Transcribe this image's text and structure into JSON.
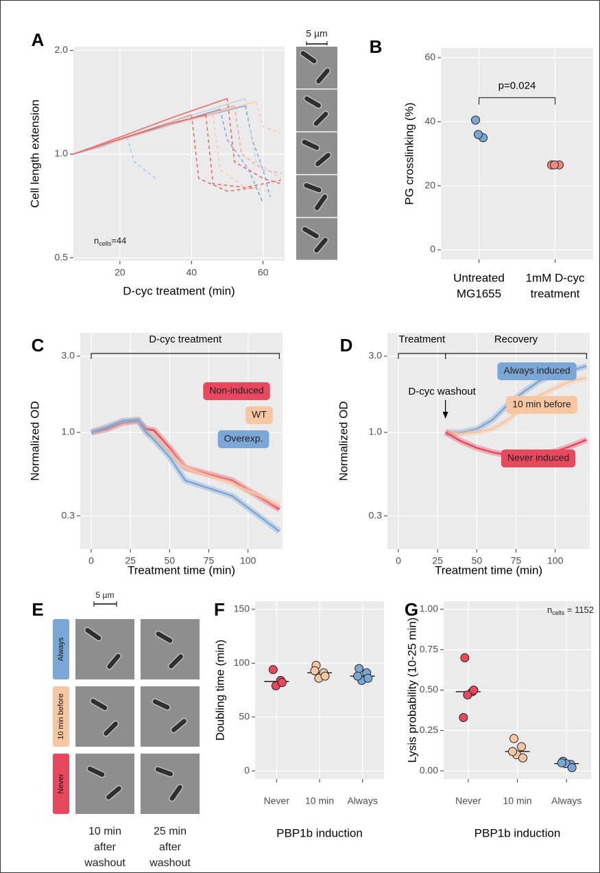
{
  "panel_a_images": {
    "scale_bar": "5 µm"
  },
  "panel_e": {
    "panel": "E",
    "scale_bar": "5 µm",
    "rows": [
      "Always",
      "10 min before",
      "Never"
    ],
    "row_colors": [
      "#7ba7d6",
      "#f7c6a3",
      "#e8475e"
    ],
    "columns": [
      [
        "10 min",
        "after",
        "washout"
      ],
      [
        "25 min",
        "after",
        "washout"
      ]
    ]
  },
  "chart_data": [
    {
      "panel": "A",
      "type": "line",
      "xlabel": "D-cyc treatment (min)",
      "ylabel": "Cell length extension",
      "xlim": [
        7,
        66
      ],
      "ylim": [
        0.49,
        2.05
      ],
      "log_y": true,
      "grid": true,
      "xticks": [
        20,
        40,
        60
      ],
      "yticks": [
        0.5,
        {
          "value": 1,
          "label": "1.0"
        },
        {
          "value": 2,
          "label": "2.0"
        }
      ],
      "annotation": {
        "main": "n",
        "sub": "cells",
        "rest": "=44"
      },
      "series": [
        {
          "color": "#ef5b5b",
          "dashed": false,
          "x": [
            7,
            20,
            35,
            50
          ],
          "values": [
            1.0,
            1.12,
            1.28,
            1.45
          ]
        },
        {
          "color": "#ef5b5b",
          "dashed": true,
          "x": [
            50,
            52,
            60,
            65
          ],
          "values": [
            1.45,
            0.95,
            0.85,
            0.82
          ]
        },
        {
          "color": "#6fa1dc",
          "dashed": false,
          "x": [
            7,
            25,
            45,
            55
          ],
          "values": [
            1.0,
            1.15,
            1.3,
            1.38
          ]
        },
        {
          "color": "#6fa1dc",
          "dashed": true,
          "x": [
            55,
            57,
            60,
            62
          ],
          "values": [
            1.38,
            1.1,
            0.9,
            0.75
          ]
        },
        {
          "color": "#f8c9a8",
          "dashed": false,
          "x": [
            7,
            20,
            38,
            46
          ],
          "values": [
            1.0,
            1.1,
            1.25,
            1.3
          ]
        },
        {
          "color": "#f8c9a8",
          "dashed": true,
          "x": [
            46,
            48,
            55,
            62
          ],
          "values": [
            1.3,
            0.9,
            0.8,
            0.78
          ]
        },
        {
          "color": "#a8c6e9",
          "dashed": false,
          "x": [
            7,
            15,
            22
          ],
          "values": [
            1.0,
            1.05,
            1.12
          ]
        },
        {
          "color": "#a8c6e9",
          "dashed": true,
          "x": [
            22,
            24,
            30
          ],
          "values": [
            1.12,
            0.95,
            0.85
          ]
        },
        {
          "color": "#ef5b5b",
          "dashed": false,
          "x": [
            7,
            25,
            40
          ],
          "values": [
            1.0,
            1.15,
            1.3
          ]
        },
        {
          "color": "#ef5b5b",
          "dashed": true,
          "x": [
            40,
            42,
            50,
            58
          ],
          "values": [
            1.3,
            0.85,
            0.78,
            0.8
          ]
        },
        {
          "color": "#f4a29a",
          "dashed": false,
          "x": [
            7,
            30,
            52
          ],
          "values": [
            1.0,
            1.18,
            1.38
          ]
        },
        {
          "color": "#f4a29a",
          "dashed": true,
          "x": [
            52,
            54,
            60,
            65
          ],
          "values": [
            1.38,
            1.0,
            0.9,
            0.88
          ]
        },
        {
          "color": "#cccccc",
          "dashed": false,
          "x": [
            7,
            30,
            55
          ],
          "values": [
            1.0,
            1.2,
            1.45
          ]
        },
        {
          "color": "#cccccc",
          "dashed": true,
          "x": [
            55,
            58,
            65
          ],
          "values": [
            1.45,
            0.95,
            0.85
          ]
        },
        {
          "color": "#6fa1dc",
          "dashed": false,
          "x": [
            7,
            30,
            48
          ],
          "values": [
            1.0,
            1.18,
            1.35
          ]
        },
        {
          "color": "#6fa1dc",
          "dashed": true,
          "x": [
            48,
            50,
            56,
            60
          ],
          "values": [
            1.35,
            1.1,
            0.9,
            0.72
          ]
        },
        {
          "color": "#f8c9a8",
          "dashed": false,
          "x": [
            7,
            35,
            58
          ],
          "values": [
            1.0,
            1.22,
            1.42
          ]
        },
        {
          "color": "#f8c9a8",
          "dashed": true,
          "x": [
            58,
            60,
            65
          ],
          "values": [
            1.42,
            1.2,
            1.15
          ]
        },
        {
          "color": "#ef5b5b",
          "dashed": false,
          "x": [
            7,
            33,
            44
          ],
          "values": [
            1.0,
            1.22,
            1.3
          ]
        },
        {
          "color": "#ef5b5b",
          "dashed": true,
          "x": [
            44,
            46,
            55,
            65
          ],
          "values": [
            1.3,
            0.82,
            0.8,
            0.84
          ]
        }
      ]
    },
    {
      "panel": "B",
      "type": "scatter",
      "ylabel": "PG crosslinking (%)",
      "categories": [
        [
          "Untreated",
          "MG1655"
        ],
        [
          "1mM D-cyc",
          "treatment"
        ]
      ],
      "colors": [
        "#7ba7d6",
        "#f08a7e"
      ],
      "values": [
        [
          40.5,
          35,
          36
        ],
        [
          26.5,
          26.5,
          26.5
        ]
      ],
      "ylim": [
        -3,
        63
      ],
      "yticks": [
        0,
        20,
        40,
        60
      ],
      "grid": true,
      "bracket": {
        "label": "p=0.024",
        "y": 47.5
      }
    },
    {
      "panel": "C",
      "type": "line",
      "xlabel": "Treatment time (min)",
      "ylabel": "Normalized OD",
      "xlim": [
        -7,
        122
      ],
      "ylim": [
        0.186,
        4.2
      ],
      "log_y": true,
      "grid": true,
      "xticks": [
        0,
        25,
        50,
        75,
        100
      ],
      "yticks": [
        0.3,
        {
          "value": 1,
          "label": "1.0"
        },
        {
          "value": 3,
          "label": "3.0"
        }
      ],
      "brackets": [
        {
          "label": "D-cyc treatment",
          "from": 0,
          "to": 120
        }
      ],
      "series": [
        {
          "name": "Non-induced",
          "color": "#e8475e",
          "x": [
            0,
            10,
            20,
            30,
            35,
            40,
            50,
            60,
            90,
            120
          ],
          "values": [
            1.0,
            1.05,
            1.15,
            1.18,
            1.05,
            1.03,
            0.8,
            0.6,
            0.5,
            0.33
          ]
        },
        {
          "name": "WT",
          "color": "#f7c6a3",
          "x": [
            0,
            10,
            20,
            30,
            35,
            40,
            50,
            60,
            90,
            120
          ],
          "values": [
            1.0,
            1.08,
            1.17,
            1.2,
            1.0,
            0.95,
            0.75,
            0.6,
            0.48,
            0.35
          ]
        },
        {
          "name": "Overexp.",
          "color": "#7ba7d6",
          "x": [
            0,
            10,
            20,
            30,
            35,
            40,
            50,
            60,
            90,
            120
          ],
          "values": [
            1.0,
            1.08,
            1.18,
            1.2,
            1.0,
            0.9,
            0.7,
            0.5,
            0.4,
            0.24
          ]
        }
      ]
    },
    {
      "panel": "D",
      "type": "line",
      "xlabel": "Treatment time (min)",
      "ylabel": "Normalized OD",
      "xlim": [
        -7,
        122
      ],
      "ylim": [
        0.186,
        4.2
      ],
      "log_y": true,
      "grid": true,
      "xticks": [
        0,
        25,
        50,
        75,
        100
      ],
      "yticks": [
        0.3,
        {
          "value": 1,
          "label": "1.0"
        },
        {
          "value": 3,
          "label": "3.0"
        }
      ],
      "brackets": [
        {
          "label": "Treatment",
          "from": 0,
          "to": 30
        },
        {
          "label": "Recovery",
          "from": 30,
          "to": 120
        }
      ],
      "arrow": {
        "label": "D-cyc washout",
        "x": 30
      },
      "series": [
        {
          "name": "Always induced",
          "color": "#7ba7d6",
          "x": [
            30,
            40,
            50,
            60,
            70,
            80,
            90,
            100,
            110,
            120
          ],
          "values": [
            1.0,
            1.0,
            1.05,
            1.2,
            1.5,
            1.8,
            2.1,
            2.3,
            2.45,
            2.6
          ]
        },
        {
          "name": "10 min before",
          "color": "#f7c6a3",
          "x": [
            30,
            40,
            50,
            60,
            70,
            80,
            90,
            100,
            110,
            120
          ],
          "values": [
            1.0,
            0.98,
            1.0,
            1.05,
            1.2,
            1.45,
            1.7,
            1.9,
            2.1,
            2.2
          ]
        },
        {
          "name": "Never induced",
          "color": "#e8475e",
          "x": [
            30,
            40,
            50,
            60,
            70,
            80,
            90,
            100,
            110,
            120
          ],
          "values": [
            1.0,
            0.88,
            0.8,
            0.75,
            0.72,
            0.71,
            0.72,
            0.76,
            0.82,
            0.9
          ]
        }
      ]
    },
    {
      "panel": "F",
      "type": "scatter",
      "xlabel": "PBP1b induction",
      "ylabel": "Doubling time (min)",
      "categories": [
        [
          "Never"
        ],
        [
          "10 min"
        ],
        [
          "Always"
        ]
      ],
      "colors": [
        "#e8475e",
        "#f7c6a3",
        "#7ba7d6"
      ],
      "values": [
        [
          94,
          84,
          79,
          82
        ],
        [
          98,
          91,
          86,
          88,
          93
        ],
        [
          95,
          91,
          84,
          86,
          88
        ]
      ],
      "medians": [
        83,
        91,
        88
      ],
      "ylim": [
        -7.5,
        157.5
      ],
      "yticks": [
        0,
        50,
        100,
        150
      ],
      "grid": true
    },
    {
      "panel": "G",
      "type": "scatter",
      "xlabel": "PBP1b induction",
      "ylabel": "Lysis probability (10-25 min)",
      "categories": [
        [
          "Never"
        ],
        [
          "10 min"
        ],
        [
          "Always"
        ]
      ],
      "colors": [
        "#e8475e",
        "#f7c6a3",
        "#7ba7d6"
      ],
      "values": [
        [
          0.7,
          0.49,
          0.47,
          0.5,
          0.33
        ],
        [
          0.2,
          0.15,
          0.1,
          0.08,
          0.12
        ],
        [
          0.06,
          0.04,
          0.045,
          0.02,
          0.05
        ]
      ],
      "medians": [
        0.49,
        0.12,
        0.045
      ],
      "ylim": [
        -0.05,
        1.05
      ],
      "yticks": [
        {
          "value": 0,
          "label": "0.00"
        },
        0.25,
        {
          "value": 0.5,
          "label": "0.50"
        },
        0.75,
        {
          "value": 1,
          "label": "1.00"
        }
      ],
      "grid": true,
      "annotation": {
        "main": "n",
        "sub": "cells",
        "rest": " = 1152"
      }
    }
  ]
}
